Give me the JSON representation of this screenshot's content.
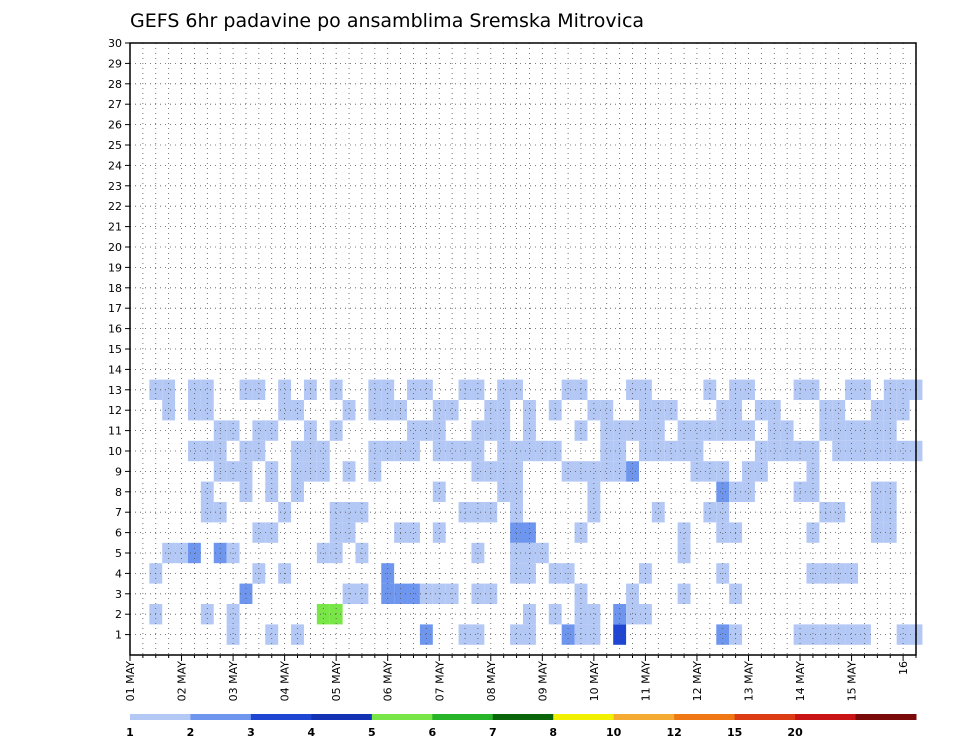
{
  "chart_data": {
    "type": "heatmap",
    "title": "GEFS 6hr padavine po ansamblima Sremska Mitrovica",
    "xlabel": "",
    "ylabel": "",
    "y_members": [
      1,
      2,
      3,
      4,
      5,
      6,
      7,
      8,
      9,
      10,
      11,
      12,
      13,
      14,
      15,
      16,
      17,
      18,
      19,
      20,
      21,
      22,
      23,
      24,
      25,
      26,
      27,
      28,
      29,
      30
    ],
    "x_tick_labels": [
      "01 MAY",
      "02 MAY",
      "03 MAY",
      "04 MAY",
      "05 MAY",
      "06 MAY",
      "07 MAY",
      "08 MAY",
      "09 MAY",
      "10 MAY",
      "11 MAY",
      "12 MAY",
      "13 MAY",
      "14 MAY",
      "15 MAY",
      "16"
    ],
    "xlim_steps": [
      0,
      61
    ],
    "grid": true,
    "legend_placement": "bottom",
    "legend_classes": [
      {
        "color": "#b4c8f5",
        "label": "1"
      },
      {
        "color": "#6e96ee",
        "label": "2"
      },
      {
        "color": "#1e46d2",
        "label": "3"
      },
      {
        "color": "#1432b4",
        "label": "4"
      },
      {
        "color": "#78e646",
        "label": "5"
      },
      {
        "color": "#28b428",
        "label": "6"
      },
      {
        "color": "#0a640a",
        "label": "7"
      },
      {
        "color": "#f0f000",
        "label": "8"
      },
      {
        "color": "#f5aa32",
        "label": "10"
      },
      {
        "color": "#f07814",
        "label": "12"
      },
      {
        "color": "#dc3c14",
        "label": "15"
      },
      {
        "color": "#c81414",
        "label": "20"
      },
      {
        "color": "#7a0a0a",
        "label": ""
      }
    ],
    "cells": [
      [
        1,
        8,
        1
      ],
      [
        1,
        11,
        1
      ],
      [
        1,
        13,
        1
      ],
      [
        1,
        23,
        2
      ],
      [
        1,
        26,
        1
      ],
      [
        1,
        27,
        1
      ],
      [
        1,
        30,
        1
      ],
      [
        1,
        31,
        1
      ],
      [
        1,
        34,
        2
      ],
      [
        1,
        35,
        1
      ],
      [
        1,
        36,
        1
      ],
      [
        1,
        38,
        3
      ],
      [
        1,
        46,
        2
      ],
      [
        1,
        47,
        1
      ],
      [
        1,
        52,
        1
      ],
      [
        1,
        53,
        1
      ],
      [
        1,
        54,
        1
      ],
      [
        1,
        55,
        1
      ],
      [
        1,
        56,
        1
      ],
      [
        1,
        57,
        1
      ],
      [
        1,
        60,
        1
      ],
      [
        1,
        61,
        1
      ],
      [
        2,
        2,
        1
      ],
      [
        2,
        6,
        1
      ],
      [
        2,
        8,
        1
      ],
      [
        2,
        15,
        5
      ],
      [
        2,
        16,
        5
      ],
      [
        2,
        31,
        1
      ],
      [
        2,
        33,
        1
      ],
      [
        2,
        35,
        1
      ],
      [
        2,
        36,
        1
      ],
      [
        2,
        38,
        2
      ],
      [
        2,
        39,
        1
      ],
      [
        2,
        40,
        1
      ],
      [
        3,
        9,
        2
      ],
      [
        3,
        17,
        1
      ],
      [
        3,
        18,
        1
      ],
      [
        3,
        20,
        2
      ],
      [
        3,
        21,
        2
      ],
      [
        3,
        22,
        2
      ],
      [
        3,
        23,
        1
      ],
      [
        3,
        24,
        1
      ],
      [
        3,
        25,
        1
      ],
      [
        3,
        27,
        1
      ],
      [
        3,
        28,
        1
      ],
      [
        3,
        35,
        1
      ],
      [
        3,
        39,
        1
      ],
      [
        3,
        43,
        1
      ],
      [
        3,
        47,
        1
      ],
      [
        4,
        2,
        1
      ],
      [
        4,
        10,
        1
      ],
      [
        4,
        12,
        1
      ],
      [
        4,
        20,
        2
      ],
      [
        4,
        30,
        1
      ],
      [
        4,
        31,
        1
      ],
      [
        4,
        33,
        1
      ],
      [
        4,
        34,
        1
      ],
      [
        4,
        40,
        1
      ],
      [
        4,
        46,
        1
      ],
      [
        4,
        53,
        1
      ],
      [
        4,
        54,
        1
      ],
      [
        4,
        55,
        1
      ],
      [
        4,
        56,
        1
      ],
      [
        5,
        3,
        1
      ],
      [
        5,
        4,
        1
      ],
      [
        5,
        5,
        2
      ],
      [
        5,
        7,
        2
      ],
      [
        5,
        8,
        1
      ],
      [
        5,
        15,
        1
      ],
      [
        5,
        16,
        1
      ],
      [
        5,
        18,
        1
      ],
      [
        5,
        27,
        1
      ],
      [
        5,
        30,
        1
      ],
      [
        5,
        31,
        1
      ],
      [
        5,
        32,
        1
      ],
      [
        5,
        43,
        1
      ],
      [
        6,
        10,
        1
      ],
      [
        6,
        11,
        1
      ],
      [
        6,
        16,
        1
      ],
      [
        6,
        17,
        1
      ],
      [
        6,
        21,
        1
      ],
      [
        6,
        22,
        1
      ],
      [
        6,
        24,
        1
      ],
      [
        6,
        30,
        2
      ],
      [
        6,
        31,
        2
      ],
      [
        6,
        35,
        1
      ],
      [
        6,
        43,
        1
      ],
      [
        6,
        46,
        1
      ],
      [
        6,
        47,
        1
      ],
      [
        6,
        53,
        1
      ],
      [
        6,
        58,
        1
      ],
      [
        6,
        59,
        1
      ],
      [
        7,
        6,
        1
      ],
      [
        7,
        7,
        1
      ],
      [
        7,
        12,
        1
      ],
      [
        7,
        16,
        1
      ],
      [
        7,
        17,
        1
      ],
      [
        7,
        18,
        1
      ],
      [
        7,
        26,
        1
      ],
      [
        7,
        27,
        1
      ],
      [
        7,
        28,
        1
      ],
      [
        7,
        30,
        1
      ],
      [
        7,
        36,
        1
      ],
      [
        7,
        41,
        1
      ],
      [
        7,
        45,
        1
      ],
      [
        7,
        46,
        1
      ],
      [
        7,
        54,
        1
      ],
      [
        7,
        55,
        1
      ],
      [
        7,
        58,
        1
      ],
      [
        7,
        59,
        1
      ],
      [
        8,
        6,
        1
      ],
      [
        8,
        9,
        1
      ],
      [
        8,
        11,
        1
      ],
      [
        8,
        13,
        1
      ],
      [
        8,
        24,
        1
      ],
      [
        8,
        29,
        1
      ],
      [
        8,
        30,
        1
      ],
      [
        8,
        36,
        1
      ],
      [
        8,
        46,
        2
      ],
      [
        8,
        47,
        1
      ],
      [
        8,
        48,
        1
      ],
      [
        8,
        52,
        1
      ],
      [
        8,
        53,
        1
      ],
      [
        8,
        58,
        1
      ],
      [
        8,
        59,
        1
      ],
      [
        9,
        7,
        1
      ],
      [
        9,
        8,
        1
      ],
      [
        9,
        9,
        1
      ],
      [
        9,
        11,
        1
      ],
      [
        9,
        13,
        1
      ],
      [
        9,
        14,
        1
      ],
      [
        9,
        15,
        1
      ],
      [
        9,
        17,
        1
      ],
      [
        9,
        19,
        1
      ],
      [
        9,
        27,
        1
      ],
      [
        9,
        28,
        1
      ],
      [
        9,
        29,
        1
      ],
      [
        9,
        30,
        1
      ],
      [
        9,
        34,
        1
      ],
      [
        9,
        35,
        1
      ],
      [
        9,
        36,
        1
      ],
      [
        9,
        37,
        1
      ],
      [
        9,
        38,
        1
      ],
      [
        9,
        39,
        2
      ],
      [
        9,
        44,
        1
      ],
      [
        9,
        45,
        1
      ],
      [
        9,
        46,
        1
      ],
      [
        9,
        48,
        1
      ],
      [
        9,
        49,
        1
      ],
      [
        9,
        53,
        1
      ],
      [
        10,
        5,
        1
      ],
      [
        10,
        6,
        1
      ],
      [
        10,
        7,
        1
      ],
      [
        10,
        9,
        1
      ],
      [
        10,
        10,
        1
      ],
      [
        10,
        13,
        1
      ],
      [
        10,
        14,
        1
      ],
      [
        10,
        15,
        1
      ],
      [
        10,
        19,
        1
      ],
      [
        10,
        20,
        1
      ],
      [
        10,
        21,
        1
      ],
      [
        10,
        22,
        1
      ],
      [
        10,
        24,
        1
      ],
      [
        10,
        25,
        1
      ],
      [
        10,
        26,
        1
      ],
      [
        10,
        27,
        1
      ],
      [
        10,
        29,
        1
      ],
      [
        10,
        30,
        1
      ],
      [
        10,
        31,
        1
      ],
      [
        10,
        32,
        1
      ],
      [
        10,
        33,
        1
      ],
      [
        10,
        37,
        1
      ],
      [
        10,
        38,
        1
      ],
      [
        10,
        40,
        1
      ],
      [
        10,
        41,
        1
      ],
      [
        10,
        42,
        1
      ],
      [
        10,
        43,
        1
      ],
      [
        10,
        44,
        1
      ],
      [
        10,
        49,
        1
      ],
      [
        10,
        50,
        1
      ],
      [
        10,
        51,
        1
      ],
      [
        10,
        52,
        1
      ],
      [
        10,
        53,
        1
      ],
      [
        10,
        55,
        1
      ],
      [
        10,
        56,
        1
      ],
      [
        10,
        57,
        1
      ],
      [
        10,
        58,
        1
      ],
      [
        10,
        59,
        1
      ],
      [
        10,
        60,
        1
      ],
      [
        10,
        61,
        1
      ],
      [
        11,
        7,
        1
      ],
      [
        11,
        8,
        1
      ],
      [
        11,
        10,
        1
      ],
      [
        11,
        11,
        1
      ],
      [
        11,
        14,
        1
      ],
      [
        11,
        16,
        1
      ],
      [
        11,
        22,
        1
      ],
      [
        11,
        23,
        1
      ],
      [
        11,
        24,
        1
      ],
      [
        11,
        27,
        1
      ],
      [
        11,
        28,
        1
      ],
      [
        11,
        29,
        1
      ],
      [
        11,
        31,
        1
      ],
      [
        11,
        35,
        1
      ],
      [
        11,
        37,
        1
      ],
      [
        11,
        38,
        1
      ],
      [
        11,
        39,
        1
      ],
      [
        11,
        40,
        1
      ],
      [
        11,
        41,
        1
      ],
      [
        11,
        43,
        1
      ],
      [
        11,
        44,
        1
      ],
      [
        11,
        45,
        1
      ],
      [
        11,
        46,
        1
      ],
      [
        11,
        47,
        1
      ],
      [
        11,
        48,
        1
      ],
      [
        11,
        50,
        1
      ],
      [
        11,
        51,
        1
      ],
      [
        11,
        54,
        1
      ],
      [
        11,
        55,
        1
      ],
      [
        11,
        56,
        1
      ],
      [
        11,
        57,
        1
      ],
      [
        11,
        58,
        1
      ],
      [
        11,
        59,
        1
      ],
      [
        12,
        3,
        1
      ],
      [
        12,
        5,
        1
      ],
      [
        12,
        6,
        1
      ],
      [
        12,
        12,
        1
      ],
      [
        12,
        13,
        1
      ],
      [
        12,
        17,
        1
      ],
      [
        12,
        19,
        1
      ],
      [
        12,
        20,
        1
      ],
      [
        12,
        21,
        1
      ],
      [
        12,
        24,
        1
      ],
      [
        12,
        25,
        1
      ],
      [
        12,
        28,
        1
      ],
      [
        12,
        29,
        1
      ],
      [
        12,
        31,
        1
      ],
      [
        12,
        33,
        1
      ],
      [
        12,
        36,
        1
      ],
      [
        12,
        37,
        1
      ],
      [
        12,
        40,
        1
      ],
      [
        12,
        41,
        1
      ],
      [
        12,
        42,
        1
      ],
      [
        12,
        46,
        1
      ],
      [
        12,
        47,
        1
      ],
      [
        12,
        49,
        1
      ],
      [
        12,
        50,
        1
      ],
      [
        12,
        54,
        1
      ],
      [
        12,
        55,
        1
      ],
      [
        12,
        58,
        1
      ],
      [
        12,
        59,
        1
      ],
      [
        12,
        60,
        1
      ],
      [
        13,
        2,
        1
      ],
      [
        13,
        3,
        1
      ],
      [
        13,
        5,
        1
      ],
      [
        13,
        6,
        1
      ],
      [
        13,
        9,
        1
      ],
      [
        13,
        10,
        1
      ],
      [
        13,
        12,
        1
      ],
      [
        13,
        14,
        1
      ],
      [
        13,
        16,
        1
      ],
      [
        13,
        19,
        1
      ],
      [
        13,
        20,
        1
      ],
      [
        13,
        22,
        1
      ],
      [
        13,
        23,
        1
      ],
      [
        13,
        26,
        1
      ],
      [
        13,
        27,
        1
      ],
      [
        13,
        29,
        1
      ],
      [
        13,
        30,
        1
      ],
      [
        13,
        34,
        1
      ],
      [
        13,
        35,
        1
      ],
      [
        13,
        39,
        1
      ],
      [
        13,
        40,
        1
      ],
      [
        13,
        45,
        1
      ],
      [
        13,
        47,
        1
      ],
      [
        13,
        48,
        1
      ],
      [
        13,
        52,
        1
      ],
      [
        13,
        53,
        1
      ],
      [
        13,
        56,
        1
      ],
      [
        13,
        57,
        1
      ],
      [
        13,
        59,
        1
      ],
      [
        13,
        60,
        1
      ],
      [
        13,
        61,
        1
      ]
    ]
  }
}
